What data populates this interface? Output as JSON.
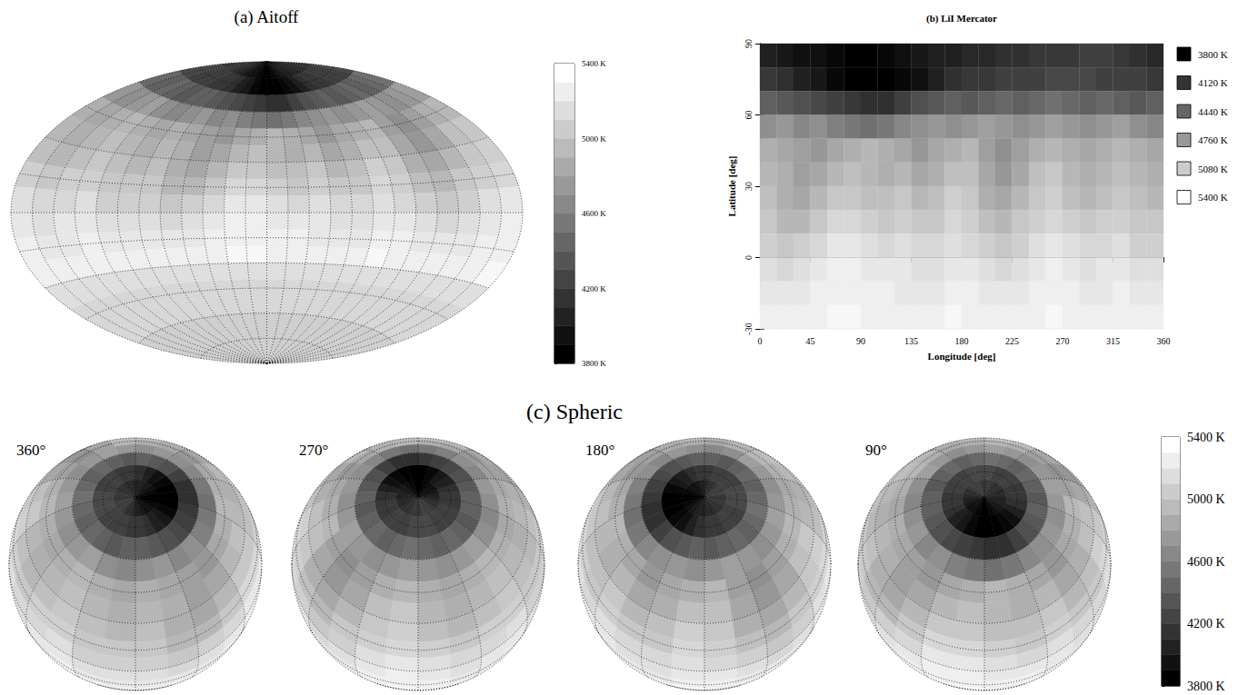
{
  "chart_data": [
    {
      "type": "aitoff",
      "title": "(a) Aitoff",
      "colorbar": {
        "range": [
          3800,
          5400
        ],
        "ticks": [
          {
            "value": 3800,
            "label": "3800 K"
          },
          {
            "value": 4200,
            "label": "4200 K"
          },
          {
            "value": 4600,
            "label": "4600 K"
          },
          {
            "value": 5000,
            "label": "5000 K"
          },
          {
            "value": 5400,
            "label": "5400 K"
          }
        ]
      }
    },
    {
      "type": "heatmap",
      "title": "(b) LiI Mercator",
      "xlabel": "Longitude [deg]",
      "ylabel": "Latitude [deg]",
      "xlim": [
        0,
        360
      ],
      "xticks": [
        0,
        45,
        90,
        135,
        180,
        225,
        270,
        315,
        360
      ],
      "ylim": [
        -30,
        90
      ],
      "yticks": [
        -30,
        0,
        30,
        60,
        90
      ],
      "color_levels": [
        {
          "value": 3800,
          "label": "3800 K"
        },
        {
          "value": 4120,
          "label": "4120 K"
        },
        {
          "value": 4440,
          "label": "4440 K"
        },
        {
          "value": 4760,
          "label": "4760 K"
        },
        {
          "value": 5080,
          "label": "5080 K"
        },
        {
          "value": 5400,
          "label": "5400 K"
        }
      ]
    },
    {
      "type": "sphere",
      "title": "(c) Spheric",
      "phases": [
        {
          "value": 360,
          "label": "360°"
        },
        {
          "value": 270,
          "label": "270°"
        },
        {
          "value": 180,
          "label": "180°"
        },
        {
          "value": 90,
          "label": "90°"
        }
      ],
      "colorbar": {
        "range": [
          3800,
          5400
        ],
        "ticks": [
          {
            "value": 3800,
            "label": "3800 K"
          },
          {
            "value": 4200,
            "label": "4200 K"
          },
          {
            "value": 4600,
            "label": "4600 K"
          },
          {
            "value": 5000,
            "label": "5000 K"
          },
          {
            "value": 5400,
            "label": "5400 K"
          }
        ]
      }
    }
  ],
  "surface": {
    "lon_edges": [
      0,
      15,
      30,
      45,
      60,
      75,
      90,
      105,
      120,
      135,
      150,
      165,
      180,
      195,
      210,
      225,
      240,
      255,
      270,
      285,
      300,
      315,
      330,
      345,
      360
    ],
    "lat_edges": [
      90,
      80,
      70,
      60,
      50,
      40,
      30,
      20,
      10,
      0,
      -10,
      -20,
      -30,
      -40,
      -50,
      -60,
      -70,
      -80,
      -90
    ],
    "temperature": [
      [
        4000,
        3950,
        3900,
        3900,
        3850,
        3800,
        3800,
        3850,
        3900,
        3950,
        4000,
        4000,
        4050,
        4050,
        4100,
        4100,
        4150,
        4150,
        4150,
        4200,
        4200,
        4150,
        4100,
        4050
      ],
      [
        4150,
        4100,
        4000,
        3950,
        3850,
        3800,
        3800,
        3800,
        3850,
        3900,
        4000,
        4100,
        4150,
        4150,
        4200,
        4200,
        4200,
        4250,
        4250,
        4250,
        4200,
        4200,
        4200,
        4150
      ],
      [
        4400,
        4350,
        4300,
        4250,
        4200,
        4150,
        4100,
        4100,
        4200,
        4300,
        4350,
        4400,
        4350,
        4400,
        4450,
        4400,
        4450,
        4500,
        4450,
        4400,
        4450,
        4400,
        4350,
        4400
      ],
      [
        4700,
        4750,
        4650,
        4700,
        4600,
        4550,
        4500,
        4550,
        4650,
        4700,
        4750,
        4700,
        4750,
        4800,
        4750,
        4700,
        4750,
        4800,
        4750,
        4700,
        4750,
        4800,
        4700,
        4650
      ],
      [
        4900,
        4850,
        4800,
        4750,
        4850,
        4900,
        4950,
        4900,
        4850,
        4750,
        4850,
        4900,
        4950,
        4800,
        4700,
        4800,
        4900,
        4950,
        4900,
        4850,
        4900,
        4950,
        4900,
        4850
      ],
      [
        4950,
        4900,
        4800,
        4850,
        4950,
        5000,
        4950,
        4900,
        4950,
        4850,
        4900,
        5000,
        5000,
        4850,
        4750,
        4850,
        5000,
        5050,
        4950,
        4900,
        4950,
        5000,
        4950,
        4900
      ],
      [
        5000,
        4900,
        4850,
        4950,
        5050,
        5050,
        5000,
        5000,
        5050,
        4950,
        5000,
        5100,
        5050,
        4900,
        4850,
        4950,
        5050,
        5100,
        5000,
        4950,
        5000,
        5050,
        5000,
        4950
      ],
      [
        5050,
        4950,
        4950,
        5050,
        5150,
        5150,
        5100,
        5050,
        5100,
        5050,
        5050,
        5150,
        5100,
        5000,
        4950,
        5050,
        5100,
        5150,
        5100,
        5050,
        5100,
        5100,
        5050,
        5050
      ],
      [
        5100,
        5050,
        5100,
        5150,
        5250,
        5250,
        5200,
        5150,
        5200,
        5150,
        5150,
        5200,
        5150,
        5100,
        5050,
        5100,
        5200,
        5250,
        5200,
        5150,
        5150,
        5200,
        5100,
        5100
      ],
      [
        5200,
        5150,
        5200,
        5250,
        5300,
        5300,
        5250,
        5250,
        5250,
        5200,
        5200,
        5250,
        5250,
        5200,
        5150,
        5200,
        5250,
        5300,
        5250,
        5200,
        5250,
        5250,
        5200,
        5200
      ],
      [
        5250,
        5250,
        5250,
        5300,
        5300,
        5300,
        5300,
        5300,
        5250,
        5250,
        5250,
        5300,
        5300,
        5250,
        5250,
        5250,
        5300,
        5300,
        5300,
        5250,
        5250,
        5300,
        5250,
        5250
      ],
      [
        5300,
        5300,
        5300,
        5300,
        5350,
        5350,
        5300,
        5300,
        5300,
        5300,
        5300,
        5350,
        5300,
        5300,
        5300,
        5300,
        5300,
        5350,
        5300,
        5300,
        5300,
        5300,
        5300,
        5300
      ],
      [
        5200,
        5200,
        5200,
        5200,
        5200,
        5200,
        5200,
        5200,
        5200,
        5200,
        5200,
        5200,
        5200,
        5200,
        5200,
        5200,
        5200,
        5200,
        5200,
        5200,
        5200,
        5200,
        5200,
        5200
      ],
      [
        5150,
        5150,
        5150,
        5150,
        5150,
        5150,
        5150,
        5150,
        5150,
        5150,
        5150,
        5150,
        5150,
        5150,
        5150,
        5150,
        5150,
        5150,
        5150,
        5150,
        5150,
        5150,
        5150,
        5150
      ],
      [
        5150,
        5150,
        5150,
        5150,
        5150,
        5150,
        5150,
        5150,
        5150,
        5150,
        5150,
        5150,
        5150,
        5150,
        5150,
        5150,
        5150,
        5150,
        5150,
        5150,
        5150,
        5150,
        5150,
        5150
      ],
      [
        5100,
        5100,
        5100,
        5100,
        5100,
        5100,
        5100,
        5100,
        5100,
        5100,
        5100,
        5100,
        5100,
        5100,
        5100,
        5100,
        5100,
        5100,
        5100,
        5100,
        5100,
        5100,
        5100,
        5100
      ],
      [
        5100,
        5100,
        5100,
        5100,
        5100,
        5100,
        5100,
        5100,
        5100,
        5100,
        5100,
        5100,
        5100,
        5100,
        5100,
        5100,
        5100,
        5100,
        5100,
        5100,
        5100,
        5100,
        5100,
        5100
      ],
      [
        5100,
        5100,
        5100,
        5100,
        5100,
        5100,
        5100,
        5100,
        5100,
        5100,
        5100,
        5100,
        5100,
        5100,
        5100,
        5100,
        5100,
        5100,
        5100,
        5100,
        5100,
        5100,
        5100,
        5100
      ]
    ]
  }
}
